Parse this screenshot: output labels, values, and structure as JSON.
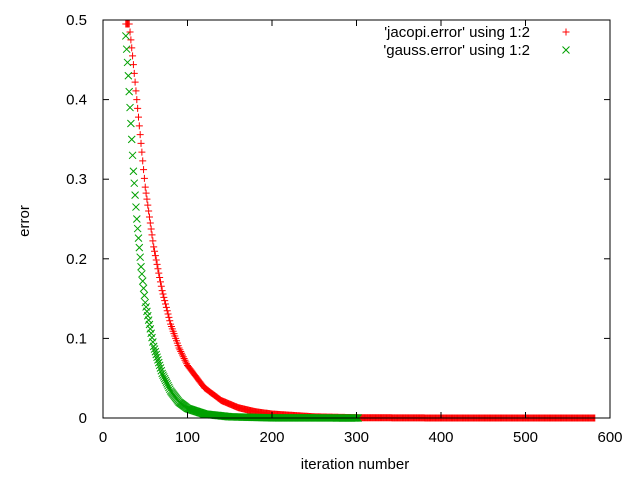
{
  "chart_data": {
    "type": "scatter",
    "title": "",
    "xlabel": "iteration number",
    "ylabel": "error",
    "xlim": [
      0,
      600
    ],
    "ylim": [
      0,
      0.5
    ],
    "xticks": [
      "0",
      "100",
      "200",
      "300",
      "400",
      "500",
      "600"
    ],
    "yticks": [
      "0",
      "0.1",
      "0.2",
      "0.3",
      "0.4",
      "0.5"
    ],
    "grid": false,
    "legend_position": "top-right",
    "series": [
      {
        "name": "'jacopi.error' using 1:2",
        "marker": "plus",
        "color": "#ff0000",
        "x_range": [
          27,
          582
        ],
        "curve_samples": [
          [
            31,
            0.495
          ],
          [
            35,
            0.455
          ],
          [
            40,
            0.4
          ],
          [
            45,
            0.345
          ],
          [
            50,
            0.29
          ],
          [
            60,
            0.215
          ],
          [
            70,
            0.16
          ],
          [
            80,
            0.118
          ],
          [
            90,
            0.088
          ],
          [
            100,
            0.066
          ],
          [
            120,
            0.038
          ],
          [
            140,
            0.022
          ],
          [
            160,
            0.013
          ],
          [
            180,
            0.008
          ],
          [
            200,
            0.005
          ],
          [
            250,
            0.0015
          ],
          [
            300,
            0.0004
          ],
          [
            400,
            0.0
          ],
          [
            582,
            0.0
          ]
        ]
      },
      {
        "name": "'gauss.error' using 1:2",
        "marker": "cross",
        "color": "#00a000",
        "x_range": [
          27,
          302
        ],
        "curve_samples": [
          [
            27,
            0.48
          ],
          [
            30,
            0.43
          ],
          [
            33,
            0.37
          ],
          [
            36,
            0.31
          ],
          [
            40,
            0.25
          ],
          [
            45,
            0.19
          ],
          [
            50,
            0.145
          ],
          [
            60,
            0.09
          ],
          [
            70,
            0.056
          ],
          [
            80,
            0.034
          ],
          [
            90,
            0.02
          ],
          [
            100,
            0.012
          ],
          [
            120,
            0.005
          ],
          [
            150,
            0.0015
          ],
          [
            200,
            0.0002
          ],
          [
            302,
            0.0
          ]
        ]
      }
    ]
  }
}
